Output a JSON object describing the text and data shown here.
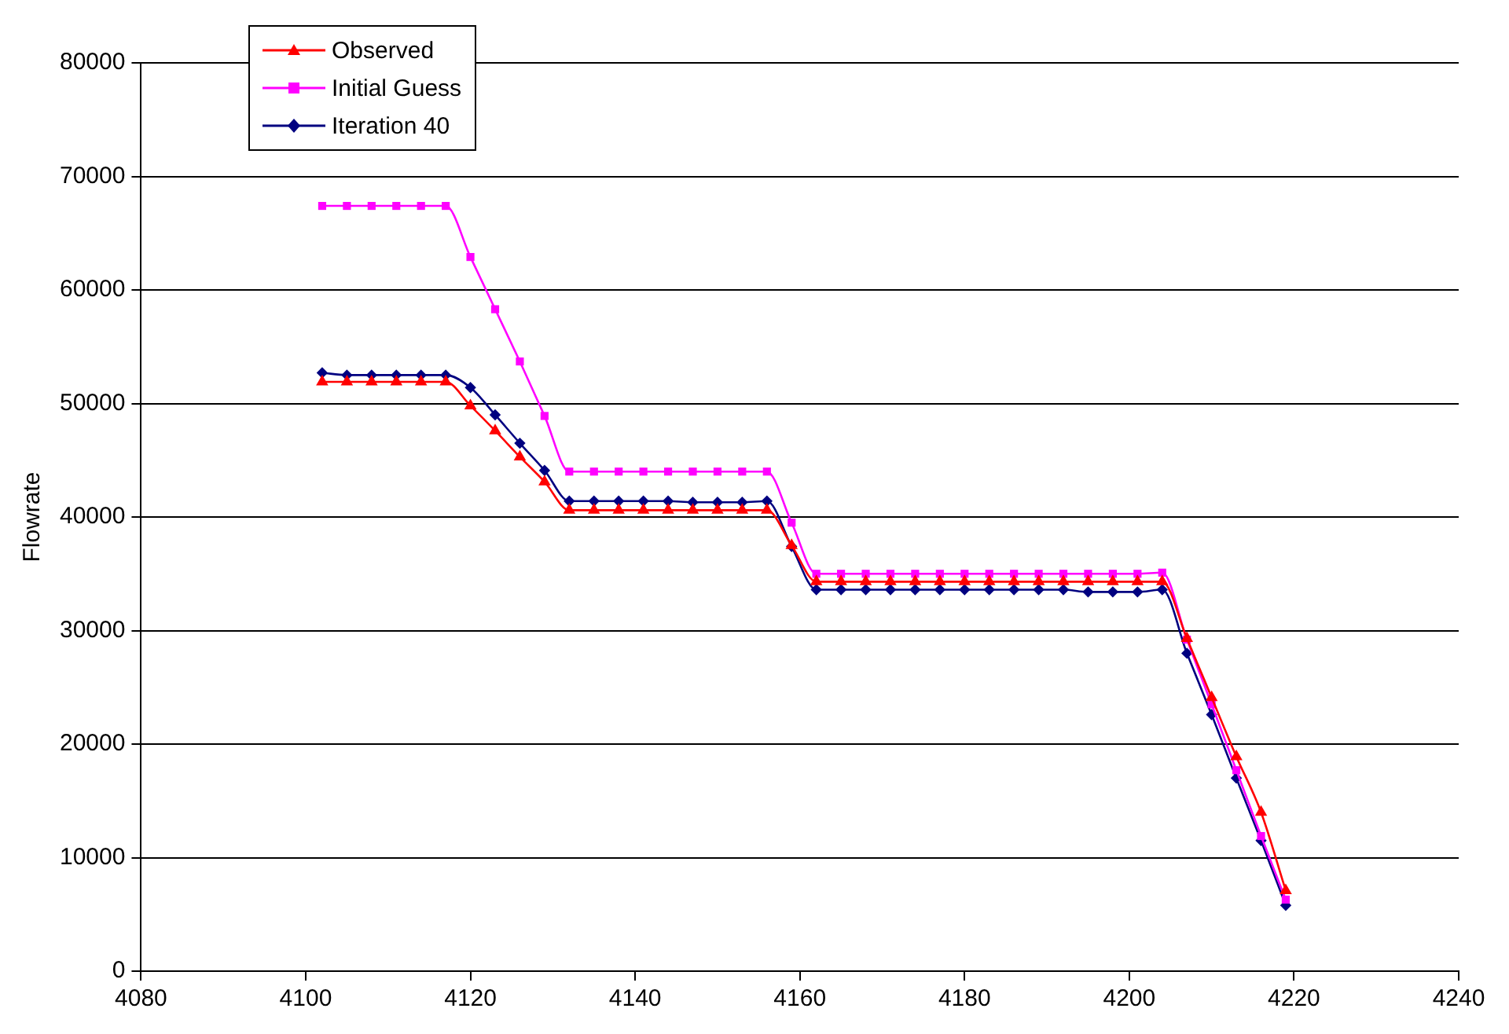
{
  "chart_data": {
    "type": "line",
    "ylabel": "Flowrate",
    "x": [
      4102,
      4105,
      4108,
      4111,
      4114,
      4117,
      4120,
      4123,
      4126,
      4129,
      4132,
      4135,
      4138,
      4141,
      4144,
      4147,
      4150,
      4153,
      4156,
      4159,
      4162,
      4165,
      4168,
      4171,
      4174,
      4177,
      4180,
      4183,
      4186,
      4189,
      4192,
      4195,
      4198,
      4201,
      4204,
      4207,
      4210,
      4213,
      4216,
      4219
    ],
    "series": [
      {
        "name": "Observed",
        "color": "#ff0000",
        "marker": "triangle",
        "values": [
          51900,
          51900,
          51900,
          51900,
          51900,
          51900,
          49800,
          47600,
          45300,
          43100,
          40600,
          40600,
          40600,
          40600,
          40600,
          40600,
          40600,
          40600,
          40600,
          37500,
          34300,
          34300,
          34300,
          34300,
          34300,
          34300,
          34300,
          34300,
          34300,
          34300,
          34300,
          34300,
          34300,
          34300,
          34300,
          29300,
          24100,
          18900,
          14000,
          7100
        ]
      },
      {
        "name": "Initial Guess",
        "color": "#ff00ff",
        "marker": "square",
        "values": [
          67400,
          67400,
          67400,
          67400,
          67400,
          67400,
          62900,
          58300,
          53700,
          48900,
          44000,
          44000,
          44000,
          44000,
          44000,
          44000,
          44000,
          44000,
          44000,
          39500,
          35000,
          35000,
          35000,
          35000,
          35000,
          35000,
          35000,
          35000,
          35000,
          35000,
          35000,
          35000,
          35000,
          35000,
          35100,
          29200,
          23500,
          17700,
          11900,
          6300
        ]
      },
      {
        "name": "Iteration 40",
        "color": "#000080",
        "marker": "diamond",
        "values": [
          52700,
          52500,
          52500,
          52500,
          52500,
          52500,
          51400,
          49000,
          46500,
          44100,
          41400,
          41400,
          41400,
          41400,
          41400,
          41300,
          41300,
          41300,
          41400,
          37400,
          33600,
          33600,
          33600,
          33600,
          33600,
          33600,
          33600,
          33600,
          33600,
          33600,
          33600,
          33400,
          33400,
          33400,
          33600,
          28000,
          22600,
          17000,
          11500,
          5800
        ]
      }
    ],
    "xlim": [
      4080,
      4240
    ],
    "xticks": [
      4080,
      4100,
      4120,
      4140,
      4160,
      4180,
      4200,
      4220,
      4240
    ],
    "ylim": [
      0,
      80000
    ],
    "yticks": [
      0,
      10000,
      20000,
      30000,
      40000,
      50000,
      60000,
      70000,
      80000
    ],
    "grid": "y",
    "legend": "top left"
  }
}
